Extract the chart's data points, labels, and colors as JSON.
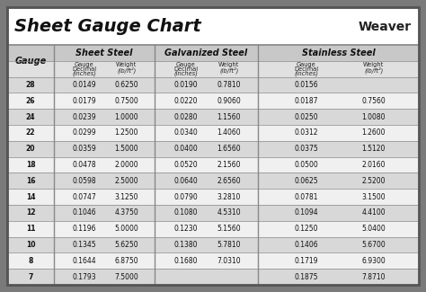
{
  "title": "Sheet Gauge Chart",
  "weaver_text": "Weaver",
  "bg_outer": "#7a7a7a",
  "bg_white": "#ffffff",
  "header_section_bg": "#c8c8c8",
  "subheader_bg": "#e0e0e0",
  "row_odd": "#d8d8d8",
  "row_even": "#f0f0f0",
  "border_color": "#555555",
  "grid_color": "#888888",
  "gauges": [
    28,
    26,
    24,
    22,
    20,
    18,
    16,
    14,
    12,
    11,
    10,
    8,
    7
  ],
  "sheet_steel_decimal": [
    "0.0149",
    "0.0179",
    "0.0239",
    "0.0299",
    "0.0359",
    "0.0478",
    "0.0598",
    "0.0747",
    "0.1046",
    "0.1196",
    "0.1345",
    "0.1644",
    "0.1793"
  ],
  "sheet_steel_weight": [
    "0.6250",
    "0.7500",
    "1.0000",
    "1.2500",
    "1.5000",
    "2.0000",
    "2.5000",
    "3.1250",
    "4.3750",
    "5.0000",
    "5.6250",
    "6.8750",
    "7.5000"
  ],
  "galvanized_decimal": [
    "0.0190",
    "0.0220",
    "0.0280",
    "0.0340",
    "0.0400",
    "0.0520",
    "0.0640",
    "0.0790",
    "0.1080",
    "0.1230",
    "0.1380",
    "0.1680",
    ""
  ],
  "galvanized_weight": [
    "0.7810",
    "0.9060",
    "1.1560",
    "1.4060",
    "1.6560",
    "2.1560",
    "2.6560",
    "3.2810",
    "4.5310",
    "5.1560",
    "5.7810",
    "7.0310",
    ""
  ],
  "stainless_decimal": [
    "0.0156",
    "0.0187",
    "0.0250",
    "0.0312",
    "0.0375",
    "0.0500",
    "0.0625",
    "0.0781",
    "0.1094",
    "0.1250",
    "0.1406",
    "0.1719",
    "0.1875"
  ],
  "stainless_weight": [
    "",
    "0.7560",
    "1.0080",
    "1.2600",
    "1.5120",
    "2.0160",
    "2.5200",
    "3.1500",
    "4.4100",
    "5.0400",
    "5.6700",
    "6.9300",
    "7.8710"
  ],
  "figw": 4.74,
  "figh": 3.25,
  "dpi": 100
}
